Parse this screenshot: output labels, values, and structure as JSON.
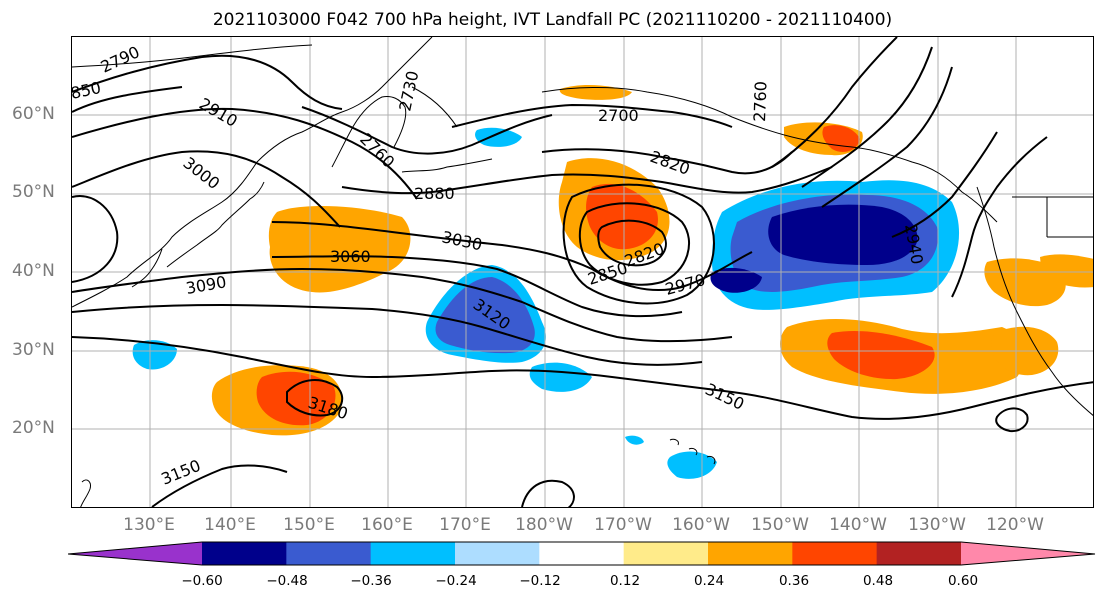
{
  "title": "2021103000 F042 700 hPa height, IVT Landfall PC (2021110200 - 2021110400)",
  "lat_labels": [
    "60°N",
    "50°N",
    "40°N",
    "30°N",
    "20°N"
  ],
  "lon_labels": [
    "130°E",
    "140°E",
    "150°E",
    "160°E",
    "170°E",
    "180°W",
    "170°W",
    "160°W",
    "150°W",
    "140°W",
    "130°W",
    "120°W"
  ],
  "contour_labels": [
    "2790",
    "850",
    "2910",
    "3000",
    "2760",
    "2730",
    "2880",
    "2700",
    "2820",
    "2760",
    "3030",
    "3060",
    "2940",
    "3090",
    "2820",
    "2850",
    "2970",
    "3120",
    "3150",
    "3180",
    "3150"
  ],
  "colorbar": {
    "ticks": [
      "−0.60",
      "−0.48",
      "−0.36",
      "−0.24",
      "−0.12",
      "0.12",
      "0.24",
      "0.36",
      "0.48",
      "0.60"
    ],
    "colors": [
      "#9932CC",
      "#00008B",
      "#3A5BD0",
      "#00BFFF",
      "#ADDDFF",
      "#FFFFFF",
      "#FFEB8A",
      "#FFA500",
      "#FF4500",
      "#B22222",
      "#FF88AA"
    ]
  }
}
